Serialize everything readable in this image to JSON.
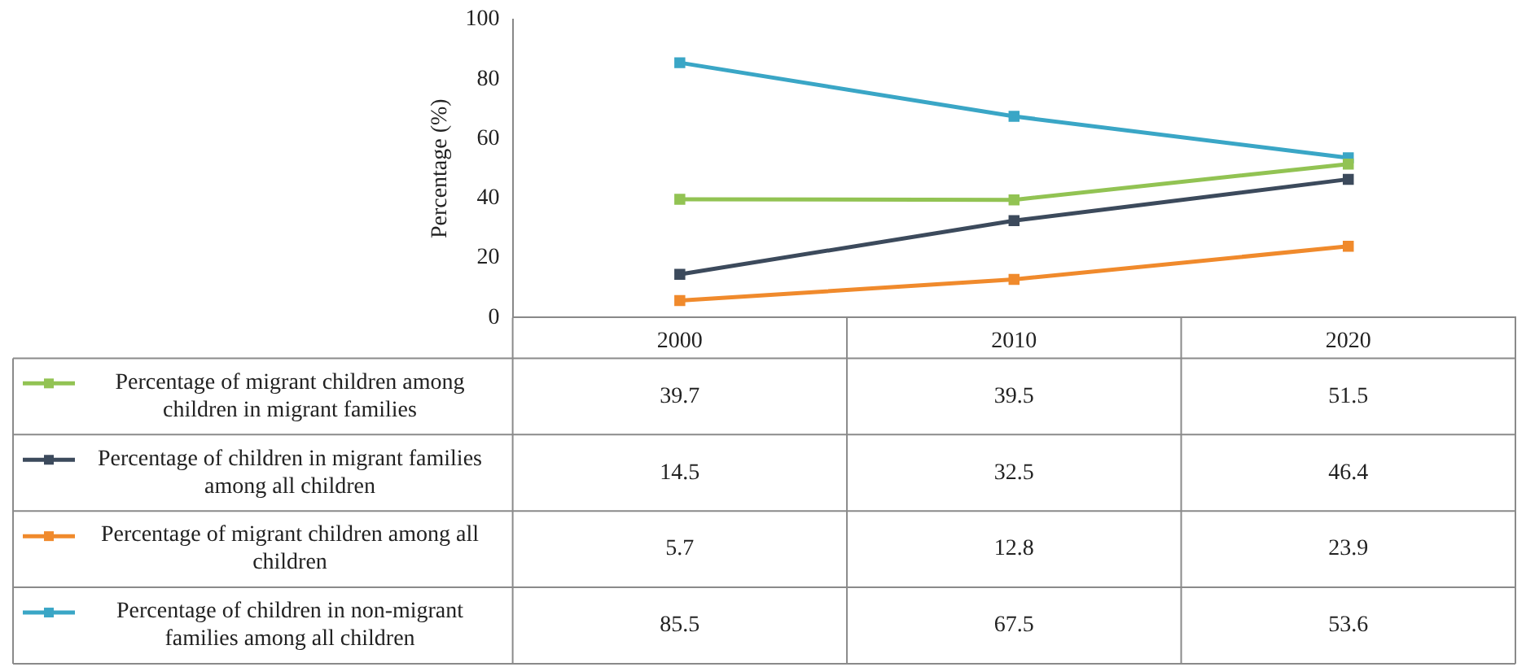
{
  "chart_data": {
    "type": "line",
    "ylabel": "Percentage (%)",
    "categories": [
      "2000",
      "2010",
      "2020"
    ],
    "series": [
      {
        "name": "Percentage of migrant children among children in migrant families",
        "color": "#92c353",
        "values": [
          39.7,
          39.5,
          51.5
        ]
      },
      {
        "name": "Percentage of children in migrant families among all children",
        "color": "#3c4a5c",
        "values": [
          14.5,
          32.5,
          46.4
        ]
      },
      {
        "name": "Percentage of migrant children among all children",
        "color": "#f08a2c",
        "values": [
          5.7,
          12.8,
          23.9
        ]
      },
      {
        "name": "Percentage of children in non-migrant families among all children",
        "color": "#3aa6c6",
        "values": [
          85.5,
          67.5,
          53.6
        ]
      }
    ],
    "ylim": [
      0,
      100
    ],
    "yticks": [
      0,
      20,
      40,
      60,
      80,
      100
    ],
    "grid": false,
    "legend": "bottom left",
    "marker": "square",
    "line_style": "solid",
    "data_labels": true
  }
}
